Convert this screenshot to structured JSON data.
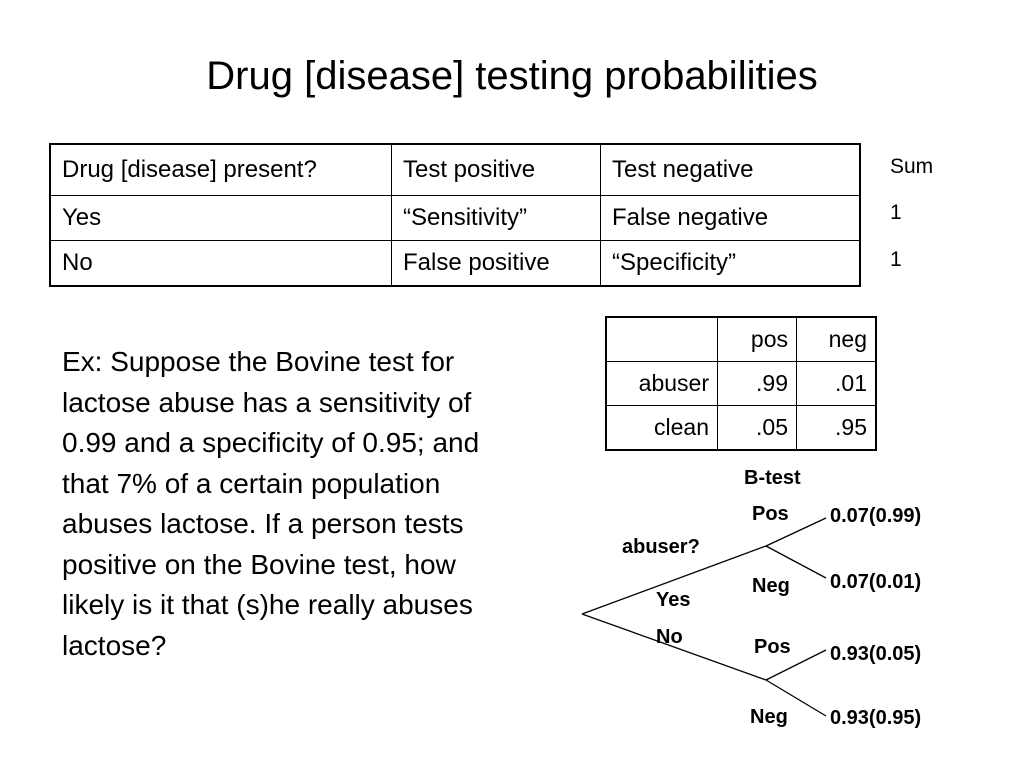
{
  "slide": {
    "title": "Drug [disease] testing probabilities"
  },
  "main_table": {
    "headers": [
      "Drug [disease] present?",
      "Test positive",
      "Test negative"
    ],
    "rows": [
      [
        "Yes",
        "“Sensitivity”",
        "False negative"
      ],
      [
        "No",
        "False positive",
        "“Specificity”"
      ]
    ],
    "sum_label": "Sum",
    "sums": [
      "1",
      "1"
    ]
  },
  "example": {
    "text": "Ex: Suppose the Bovine test for lactose abuse has a sensitivity of 0.99 and a specificity of 0.95; and that 7% of a certain population abuses lactose.  If a person tests positive on the Bovine test, how likely is it that (s)he really abuses lactose?"
  },
  "small_table": {
    "headers": [
      "",
      "pos",
      "neg"
    ],
    "rows": [
      [
        "abuser",
        ".99",
        ".01"
      ],
      [
        "clean",
        ".05",
        ".95"
      ]
    ]
  },
  "tree": {
    "test_label": "B-test",
    "root_question": "abuser?",
    "yes_label": "Yes",
    "no_label": "No",
    "leaves": [
      {
        "branch": "Pos",
        "value": "0.07(0.99)"
      },
      {
        "branch": "Neg",
        "value": "0.07(0.01)"
      },
      {
        "branch": "Pos",
        "value": "0.93(0.05)"
      },
      {
        "branch": "Neg",
        "value": "0.93(0.95)"
      }
    ]
  }
}
